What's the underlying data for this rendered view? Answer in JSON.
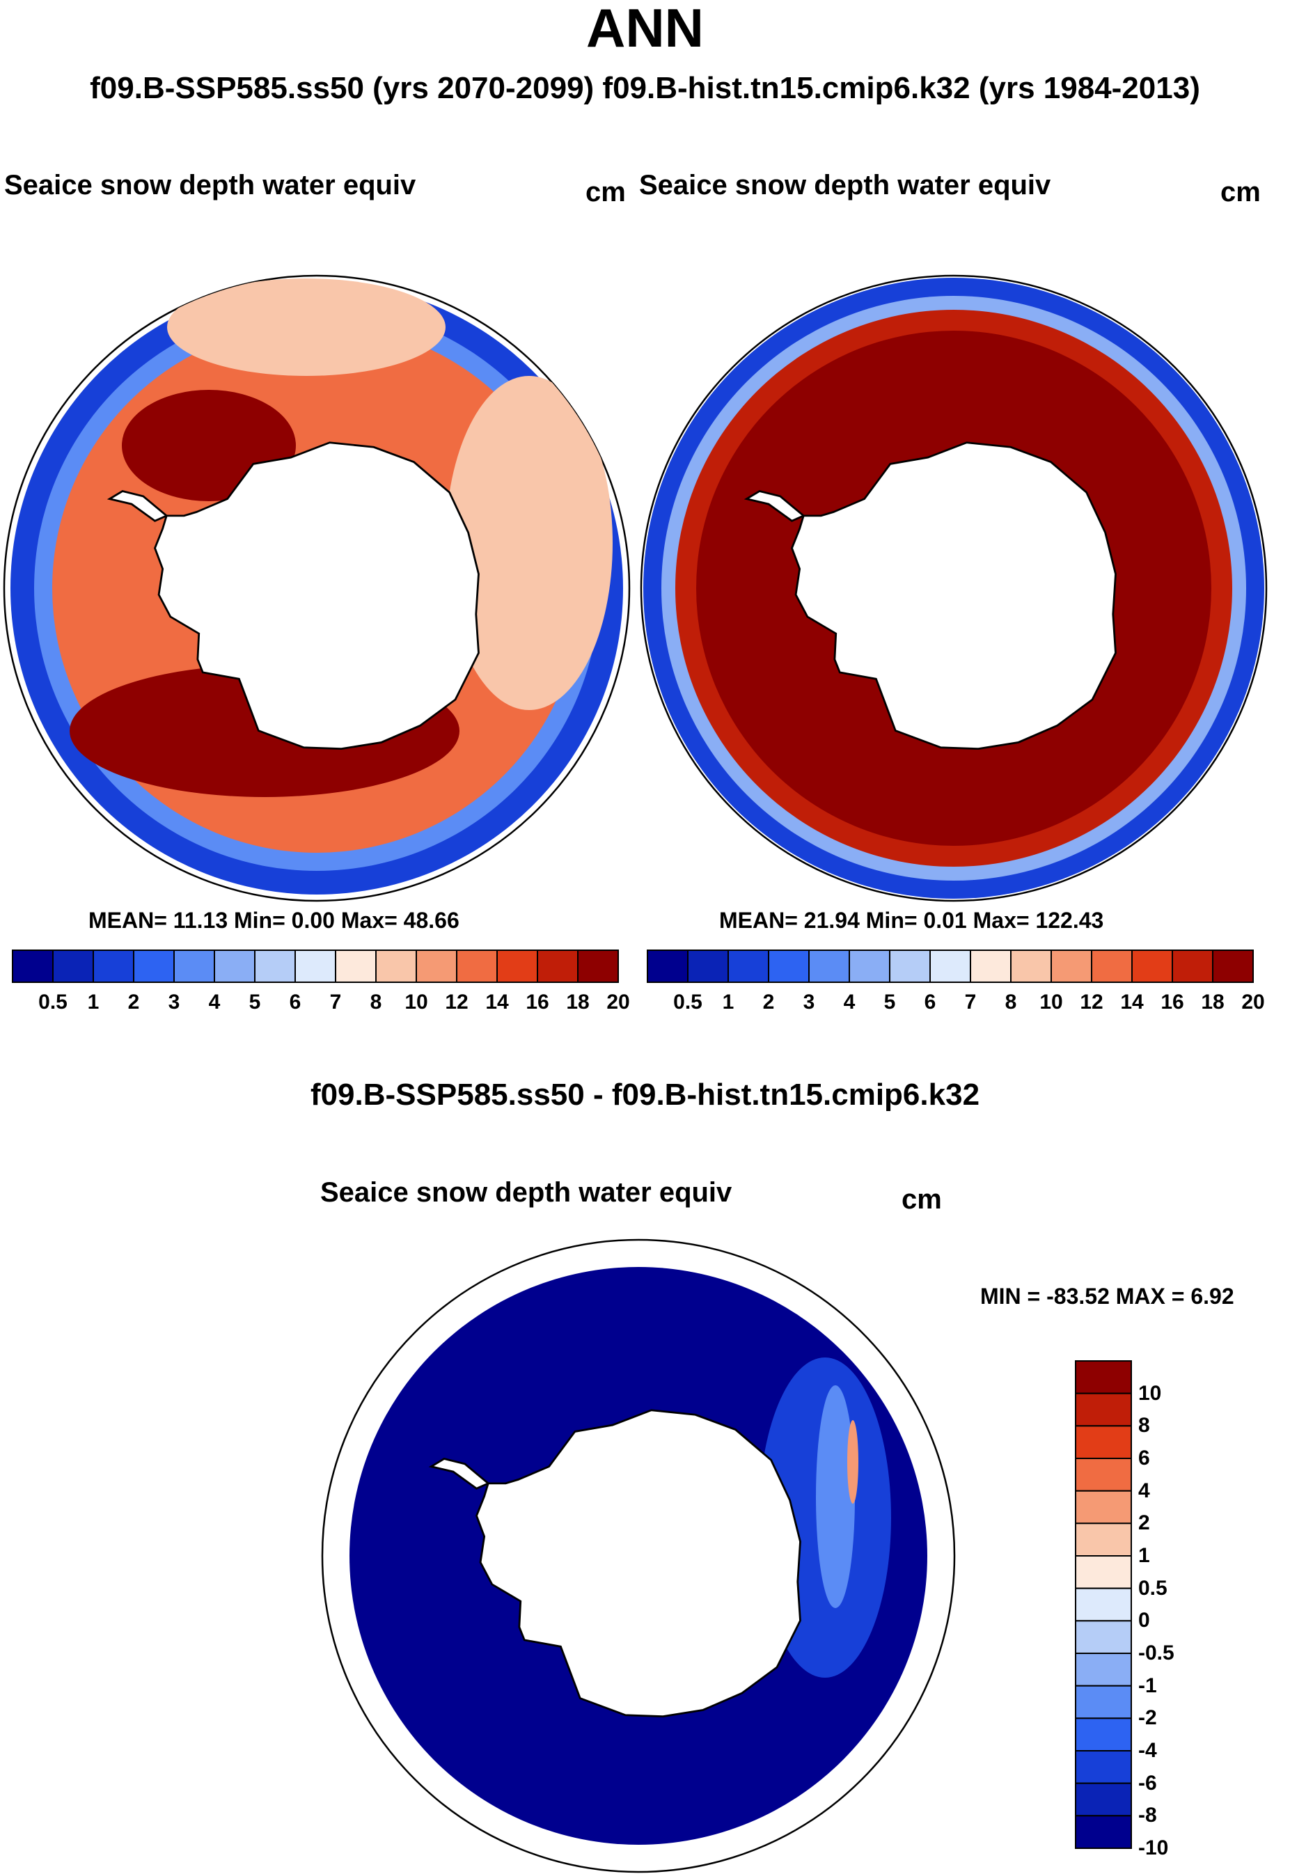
{
  "page": {
    "title": "ANN",
    "subtitle": "f09.B-SSP585.ss50 (yrs 2070-2099)  f09.B-hist.tn15.cmip6.k32 (yrs 1984-2013)"
  },
  "panels": [
    {
      "variable": "Seaice snow depth water equiv",
      "units": "cm",
      "stats_text": "MEAN=  11.13  Min=    0.00  Max=  48.66",
      "mean": 11.13,
      "min": 0.0,
      "max": 48.66
    },
    {
      "variable": "Seaice snow depth water equiv",
      "units": "cm",
      "stats_text": "MEAN=  21.94  Min=    0.01  Max= 122.43",
      "mean": 21.94,
      "min": 0.01,
      "max": 122.43
    }
  ],
  "diff_panel": {
    "title": "f09.B-SSP585.ss50 - f09.B-hist.tn15.cmip6.k32",
    "variable": "Seaice snow depth water equiv",
    "units": "cm",
    "minmax_text": "MIN = -83.52 MAX =    6.92",
    "min": -83.52,
    "max": 6.92
  },
  "colorbar_abs": {
    "levels": [
      "0.5",
      "1",
      "2",
      "3",
      "4",
      "5",
      "6",
      "7",
      "8",
      "10",
      "12",
      "14",
      "16",
      "18",
      "20"
    ],
    "colors": [
      "#00008e",
      "#0a23b6",
      "#1740d8",
      "#2d63f2",
      "#5b8cf5",
      "#8aaef5",
      "#b5cdf7",
      "#ddeafc",
      "#fde9dc",
      "#f9c6aa",
      "#f59a74",
      "#f06c42",
      "#e23d17",
      "#c01e08",
      "#8e0000"
    ]
  },
  "colorbar_diff": {
    "levels": [
      "10",
      "8",
      "6",
      "4",
      "2",
      "1",
      "0.5",
      "0",
      "-0.5",
      "-1",
      "-2",
      "-4",
      "-6",
      "-8",
      "-10"
    ],
    "colors": [
      "#8e0000",
      "#c01e08",
      "#e23d17",
      "#f06c42",
      "#f59a74",
      "#f9c6aa",
      "#fde9dc",
      "#ddeafc",
      "#b5cdf7",
      "#8aaef5",
      "#5b8cf5",
      "#2d63f2",
      "#1740d8",
      "#0a23b6",
      "#00008e"
    ]
  },
  "map_colors": {
    "ice_edge": "#1740d8",
    "deep_red": "#8e0000",
    "red": "#c01e08",
    "orange": "#f06c42",
    "light_salmon": "#f9c6aa",
    "diff_main": "#00008e"
  },
  "icons": {
    "continent": "antarctica-outline"
  }
}
